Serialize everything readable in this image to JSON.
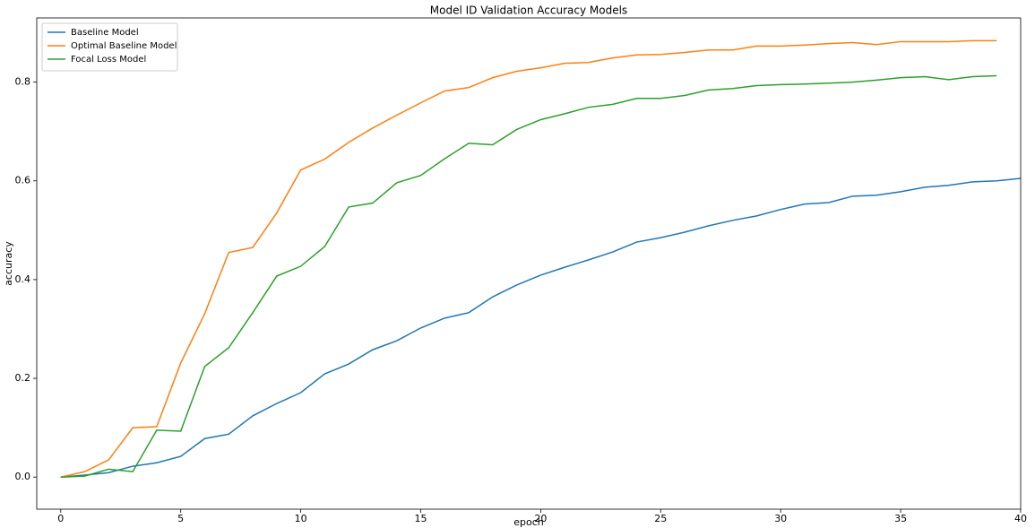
{
  "chart_data": {
    "type": "line",
    "title": "Model ID Validation Accuracy Models",
    "x_label": "epoch",
    "y_label": "accuracy",
    "x": [
      0,
      1,
      2,
      3,
      4,
      5,
      6,
      7,
      8,
      9,
      10,
      11,
      12,
      13,
      14,
      15,
      16,
      17,
      18,
      19,
      20,
      21,
      22,
      23,
      24,
      25,
      26,
      27,
      28,
      29,
      30,
      31,
      32,
      33,
      34,
      35,
      36,
      37,
      38,
      39,
      40
    ],
    "series": [
      {
        "name": "Baseline Model",
        "color": "#1f77b4",
        "values": [
          0,
          0.004,
          0.009,
          0.022,
          0.029,
          0.042,
          0.078,
          0.087,
          0.124,
          0.149,
          0.171,
          0.209,
          0.229,
          0.258,
          0.276,
          0.302,
          0.322,
          0.333,
          0.365,
          0.389,
          0.409,
          0.425,
          0.44,
          0.456,
          0.476,
          0.485,
          0.496,
          0.509,
          0.52,
          0.529,
          0.542,
          0.553,
          0.556,
          0.569,
          0.571,
          0.578,
          0.587,
          0.591,
          0.598,
          0.6,
          0.605
        ]
      },
      {
        "name": "Optimal Baseline Model",
        "color": "#ff7f0e",
        "values": [
          0,
          0.011,
          0.035,
          0.1,
          0.102,
          0.231,
          0.331,
          0.455,
          0.465,
          0.535,
          0.622,
          0.644,
          0.678,
          0.707,
          0.733,
          0.758,
          0.782,
          0.789,
          0.809,
          0.822,
          0.829,
          0.838,
          0.84,
          0.849,
          0.855,
          0.856,
          0.86,
          0.865,
          0.865,
          0.873,
          0.873,
          0.875,
          0.878,
          0.88,
          0.876,
          0.882,
          0.882,
          0.882,
          0.884,
          0.884,
          null
        ]
      },
      {
        "name": "Focal Loss Model",
        "color": "#2ca02c",
        "values": [
          0,
          0.002,
          0.016,
          0.011,
          0.095,
          0.093,
          0.224,
          0.262,
          0.333,
          0.407,
          0.427,
          0.467,
          0.547,
          0.555,
          0.596,
          0.611,
          0.645,
          0.676,
          0.673,
          0.704,
          0.724,
          0.736,
          0.749,
          0.755,
          0.767,
          0.767,
          0.773,
          0.784,
          0.787,
          0.793,
          0.795,
          0.796,
          0.798,
          0.8,
          0.804,
          0.809,
          0.811,
          0.805,
          0.811,
          0.813,
          null
        ]
      }
    ],
    "xlim": [
      -1,
      40
    ],
    "xticks": [
      0,
      5,
      10,
      15,
      20,
      25,
      30,
      35,
      40
    ],
    "ylim": [
      -0.065,
      0.93
    ],
    "yticks": [
      {
        "value": 0,
        "label": "0.0"
      },
      0.2,
      0.4,
      0.6,
      0.8
    ],
    "legend": "upper left"
  }
}
